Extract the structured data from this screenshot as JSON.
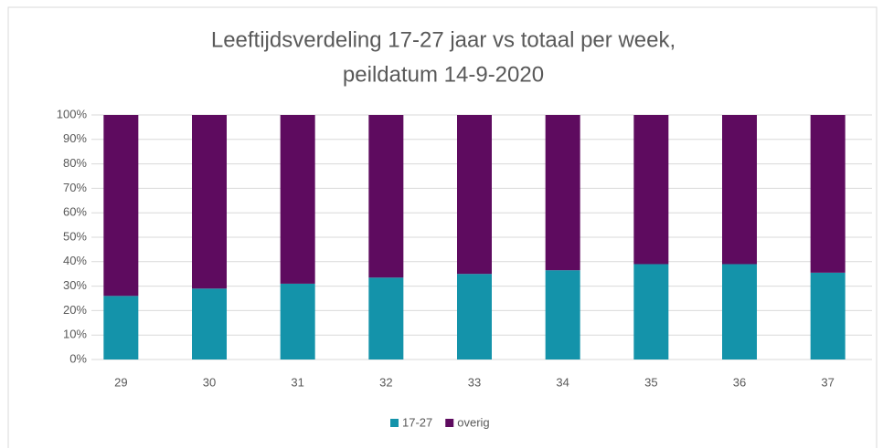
{
  "chart_data": {
    "type": "bar",
    "stacked": true,
    "title": [
      "Leeftijdsverdeling 17-27 jaar vs totaal per week,",
      "peildatum 14-9-2020"
    ],
    "categories": [
      "29",
      "30",
      "31",
      "32",
      "33",
      "34",
      "35",
      "36",
      "37"
    ],
    "series": [
      {
        "name": "17-27",
        "color": "#1493aa",
        "values": [
          26,
          29,
          31,
          33.5,
          35,
          36.5,
          39,
          39,
          35.5
        ]
      },
      {
        "name": "overig",
        "color": "#5e0b5f",
        "values": [
          74,
          71,
          69,
          66.5,
          65,
          63.5,
          61,
          61,
          64.5
        ]
      }
    ],
    "ylim": [
      0,
      100
    ],
    "yticks": [
      {
        "value": 0,
        "label": "0%"
      },
      {
        "value": 10,
        "label": "10%"
      },
      {
        "value": 20,
        "label": "20%"
      },
      {
        "value": 30,
        "label": "30%"
      },
      {
        "value": 40,
        "label": "40%"
      },
      {
        "value": 50,
        "label": "50%"
      },
      {
        "value": 60,
        "label": "60%"
      },
      {
        "value": 70,
        "label": "70%"
      },
      {
        "value": 80,
        "label": "80%"
      },
      {
        "value": 90,
        "label": "90%"
      },
      {
        "value": 100,
        "label": "100%"
      }
    ],
    "grid": true,
    "legend": "bottom"
  }
}
